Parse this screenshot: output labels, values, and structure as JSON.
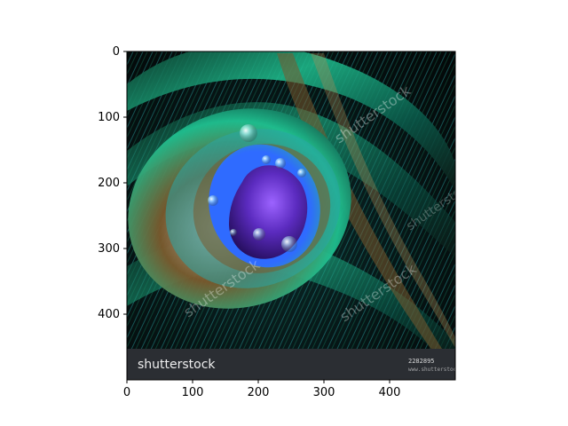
{
  "figure": {
    "x_ticks": [
      "0",
      "100",
      "200",
      "300",
      "400"
    ],
    "y_ticks": [
      "0",
      "100",
      "200",
      "300",
      "400"
    ],
    "x_range": [
      0,
      500
    ],
    "y_range": [
      500,
      0
    ],
    "x_tick_values": [
      0,
      100,
      200,
      300,
      400
    ],
    "y_tick_values": [
      0,
      100,
      200,
      300,
      400
    ]
  },
  "image": {
    "subject": "peacock feather eye with water droplets",
    "watermark_text": "shutterstock",
    "footer_brand": "shutterstock",
    "footer_id_text": "2282895"
  },
  "colors": {
    "iridescent_green": "#1fbf8f",
    "teal": "#2aa6a6",
    "purple_eye": "#5b2bbf",
    "blue_ring": "#2f6bff",
    "bronze": "#7a5a2d",
    "footer_bg": "#2b2e33"
  }
}
